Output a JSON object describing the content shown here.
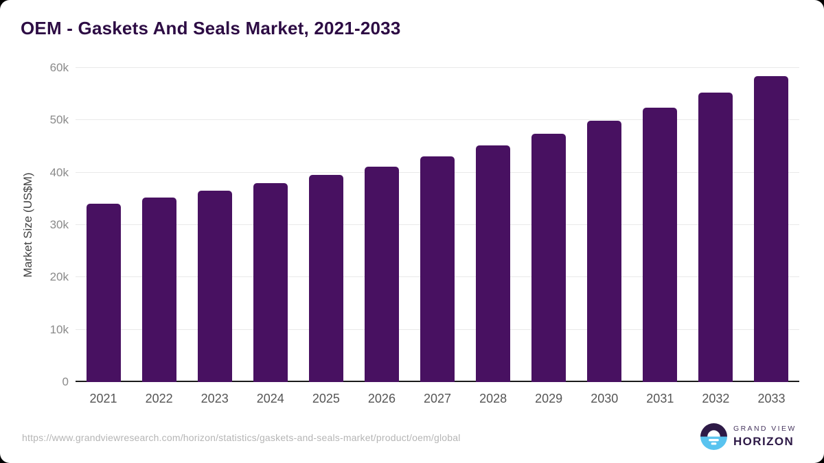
{
  "title": "OEM - Gaskets And Seals Market, 2021-2033",
  "chart_data": {
    "type": "bar",
    "title": "OEM - Gaskets And Seals Market, 2021-2033",
    "categories": [
      "2021",
      "2022",
      "2023",
      "2024",
      "2025",
      "2026",
      "2027",
      "2028",
      "2029",
      "2030",
      "2031",
      "2032",
      "2033"
    ],
    "values": [
      34100,
      35200,
      36500,
      38000,
      39500,
      41200,
      43100,
      45200,
      47400,
      49900,
      52400,
      55300,
      58400
    ],
    "xlabel": "",
    "ylabel": "Market Size (US$M)",
    "ylim": [
      0,
      60000
    ],
    "yticks": [
      {
        "value": 0,
        "label": "0"
      },
      {
        "value": 10000,
        "label": "10k"
      },
      {
        "value": 20000,
        "label": "20k"
      },
      {
        "value": 30000,
        "label": "30k"
      },
      {
        "value": 40000,
        "label": "40k"
      },
      {
        "value": 50000,
        "label": "50k"
      },
      {
        "value": 60000,
        "label": "60k"
      }
    ],
    "grid": true,
    "legend": false,
    "bar_color": "#481161"
  },
  "footer": {
    "source_url": "https://www.grandviewresearch.com/horizon/statistics/gaskets-and-seals-market/product/oem/global"
  },
  "branding": {
    "line1": "GRAND VIEW",
    "line2": "HORIZON"
  },
  "colors": {
    "title_text": "#2d0c44",
    "bar": "#481161",
    "gridline": "#e9e9e9",
    "axis_line": "#1a1a1a",
    "y_tick_text": "#8a8a8a",
    "x_tick_text": "#555555",
    "axis_title_text": "#3f3f3f",
    "url_text": "#b5b5b5",
    "logo_purple": "#2e1a47",
    "logo_blue": "#59c3ef",
    "card_background": "#ffffff"
  }
}
